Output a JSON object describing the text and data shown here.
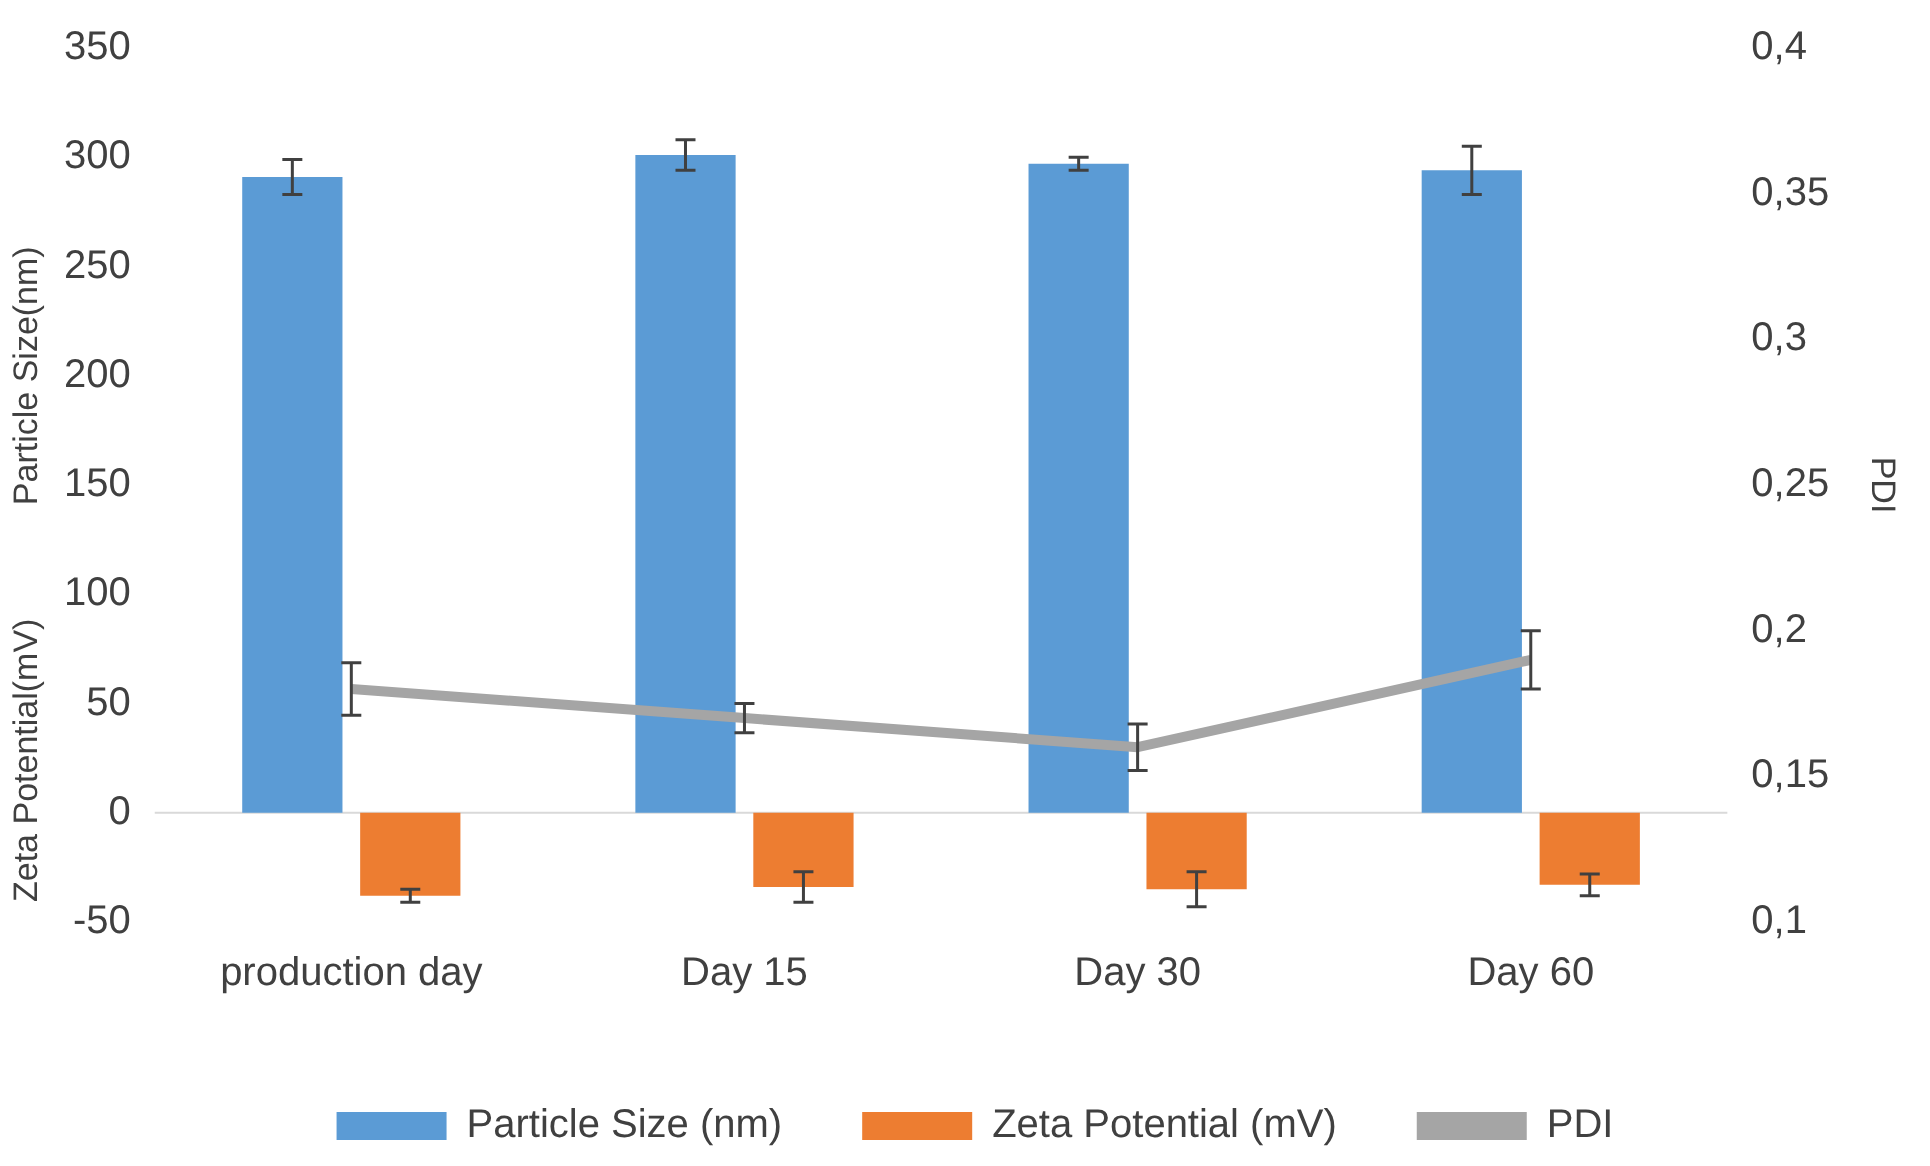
{
  "chart_data": {
    "type": "bar",
    "categories": [
      "production day",
      "Day 15",
      "Day 30",
      "Day 60"
    ],
    "series": [
      {
        "name": "Particle Size (nm)",
        "color": "#5b9bd5",
        "values": [
          291,
          301,
          297,
          294
        ],
        "errors": [
          8,
          7,
          3,
          11
        ]
      },
      {
        "name": "Zeta Potential (mV)",
        "color": "#ed7d31",
        "values": [
          -38,
          -34,
          -35,
          -33
        ],
        "errors": [
          3,
          7,
          8,
          5
        ]
      },
      {
        "name": "PDI",
        "type": "line",
        "axis": "y2",
        "color": "#a5a5a5",
        "values": [
          0.18,
          0.17,
          0.16,
          0.19
        ],
        "errors": [
          0.009,
          0.005,
          0.008,
          0.01
        ]
      }
    ],
    "ylabel": "Particle Size(nm)",
    "y2label": "PDI",
    "annotations": [
      "Zeta Potential(mV)"
    ],
    "ylim": [
      -50,
      350
    ],
    "yticks": [
      -50,
      0,
      50,
      100,
      150,
      200,
      250,
      300,
      350
    ],
    "y2lim": [
      0.1,
      0.4
    ],
    "y2ticks": [
      {
        "value": 0.1,
        "label": "0,1"
      },
      {
        "value": 0.15,
        "label": "0,15"
      },
      {
        "value": 0.2,
        "label": "0,2"
      },
      {
        "value": 0.25,
        "label": "0,25"
      },
      {
        "value": 0.3,
        "label": "0,3"
      },
      {
        "value": 0.35,
        "label": "0,35"
      },
      {
        "value": 0.4,
        "label": "0,4"
      }
    ],
    "ref_lines": [
      {
        "axis": "y",
        "value": 0,
        "color": "#d9d9d9"
      }
    ],
    "grid": false,
    "legend": "bottom",
    "marker": "none",
    "line_style": "solid"
  }
}
